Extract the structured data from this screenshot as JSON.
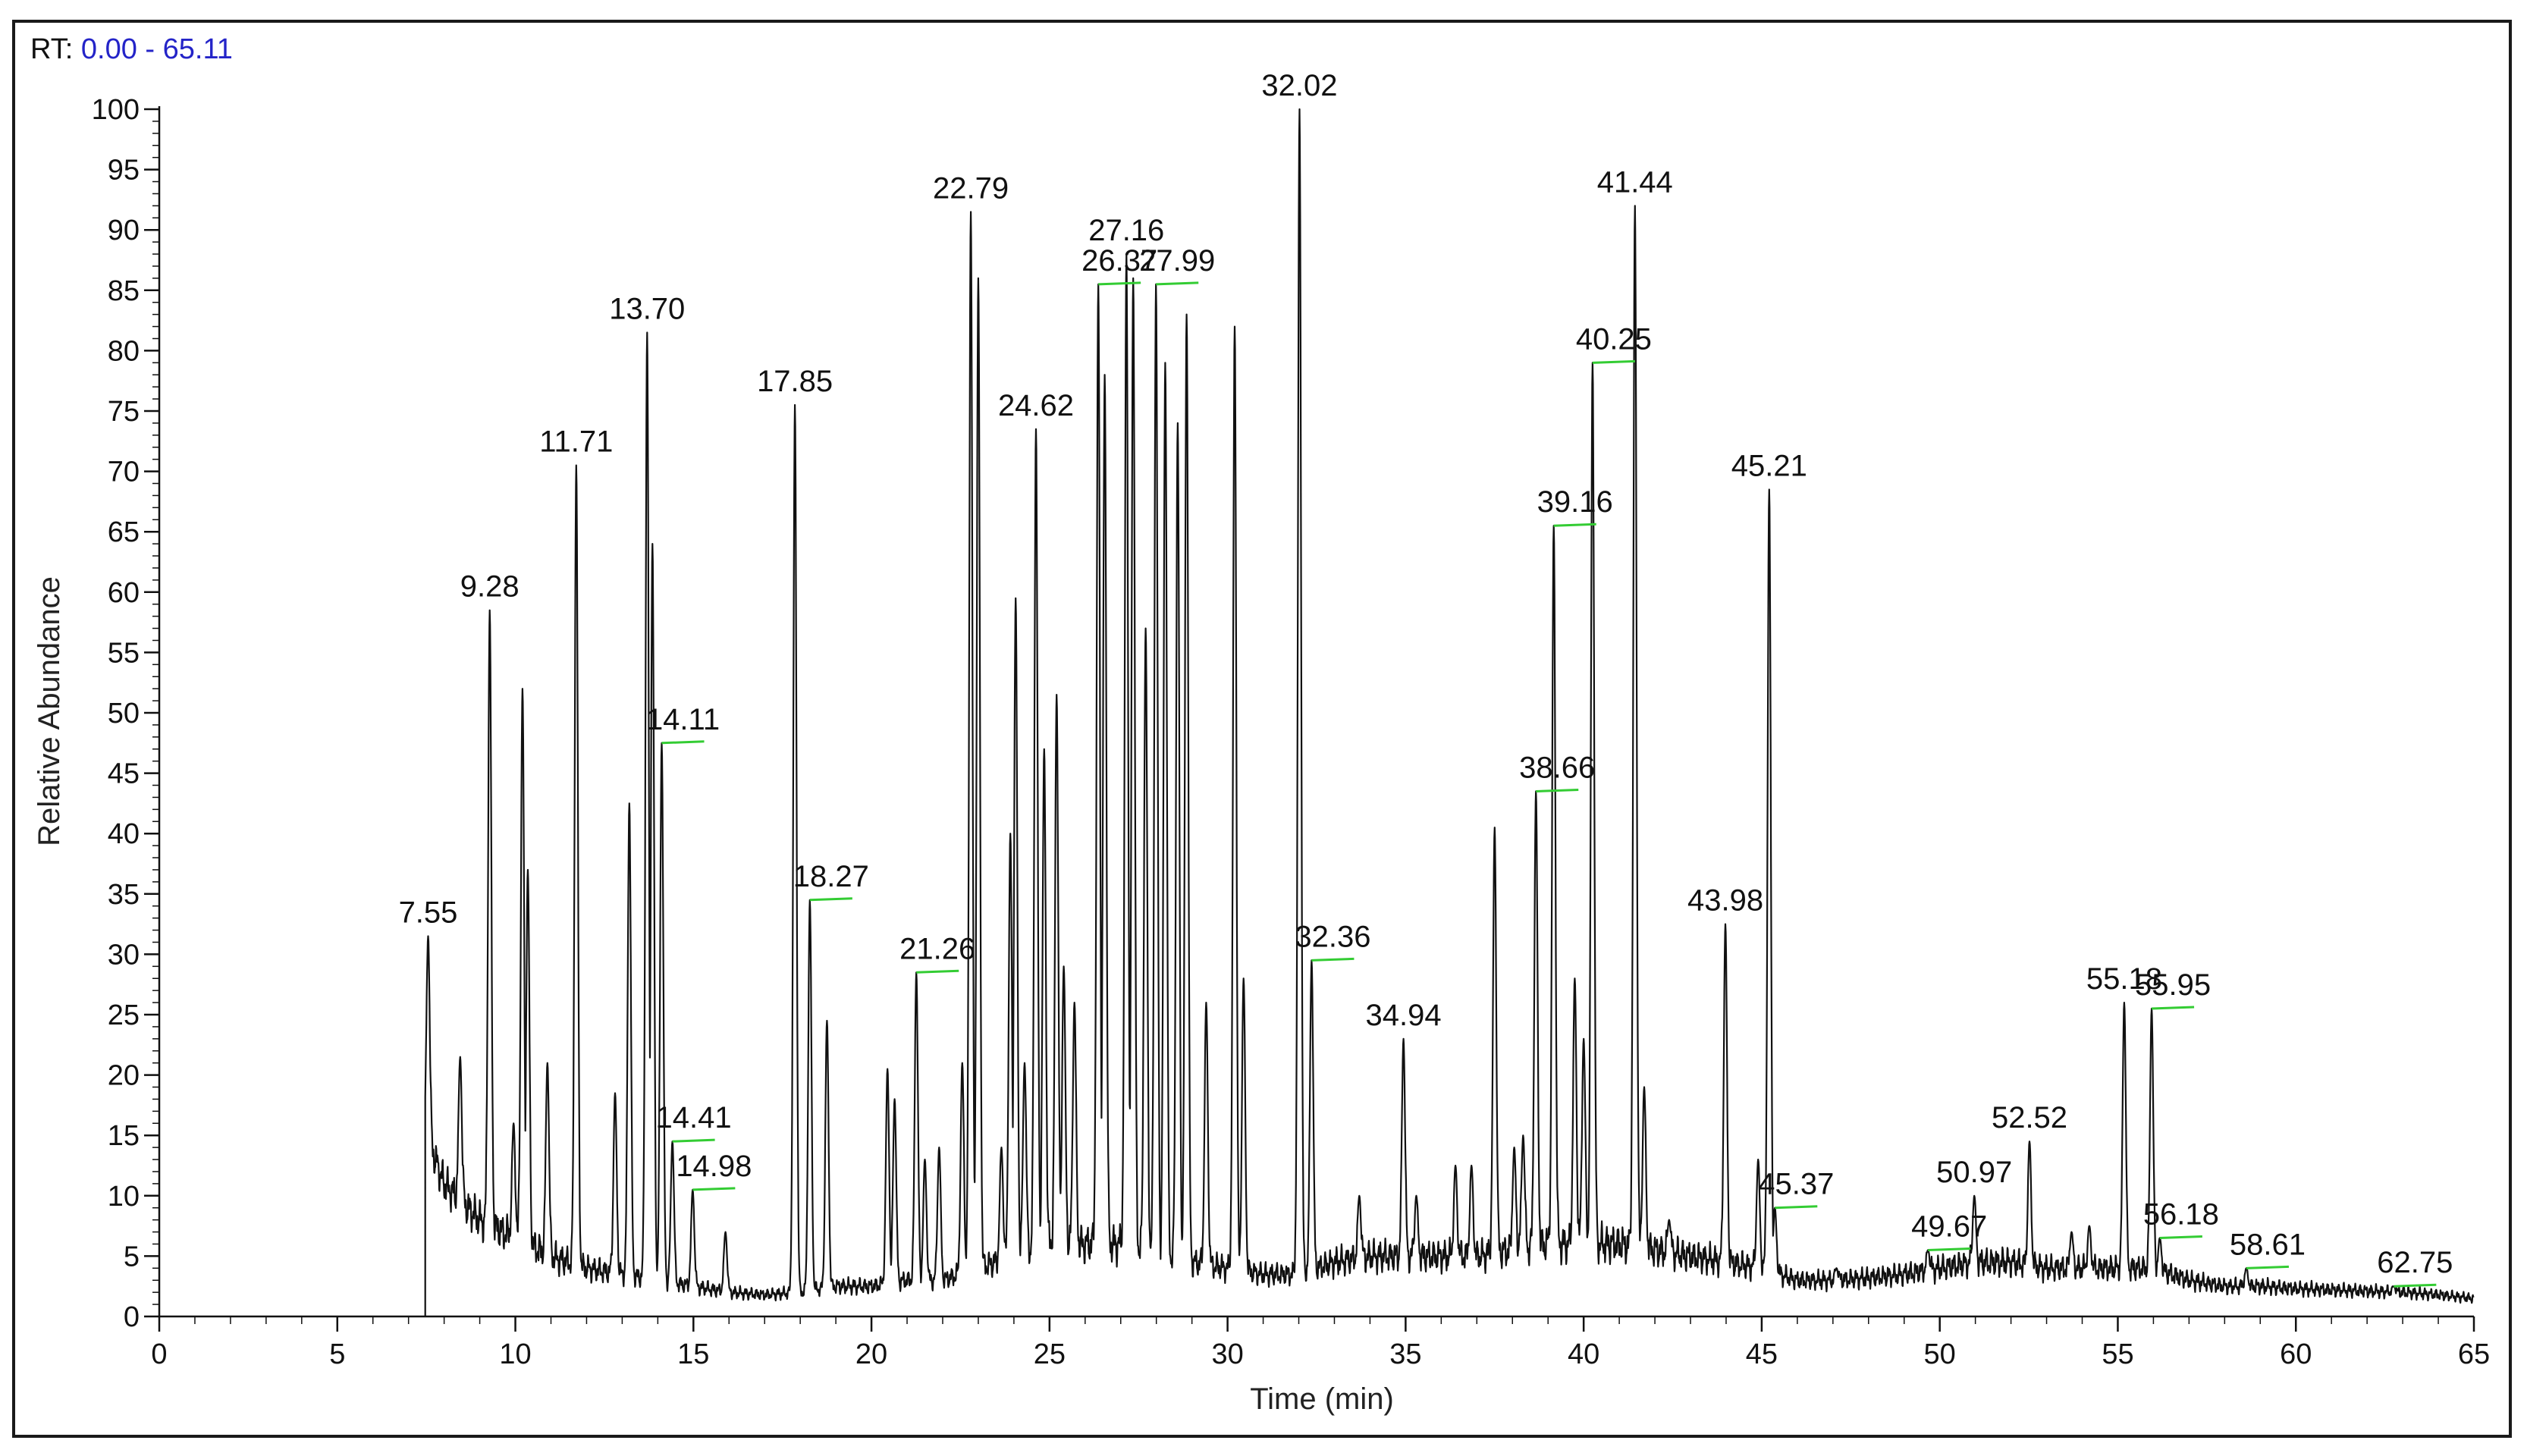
{
  "header": {
    "rt_prefix": "RT:",
    "rt_range": "0.00 - 65.11"
  },
  "chart_data": {
    "type": "line",
    "title": "",
    "xlabel": "Time (min)",
    "ylabel": "Relative Abundance",
    "xlim": [
      0,
      65
    ],
    "ylim": [
      0,
      100
    ],
    "x_ticks": [
      0,
      5,
      10,
      15,
      20,
      25,
      30,
      35,
      40,
      45,
      50,
      55,
      60,
      65
    ],
    "y_ticks": [
      0,
      5,
      10,
      15,
      20,
      25,
      30,
      35,
      40,
      45,
      50,
      55,
      60,
      65,
      70,
      75,
      80,
      85,
      90,
      95,
      100
    ],
    "grid": false,
    "line_color": "#111111",
    "marker_color": "#33cc33",
    "peaks": [
      {
        "rt": 7.55,
        "label": "7.55",
        "height": 31.5
      },
      {
        "rt": 8.45,
        "height": 21.5
      },
      {
        "rt": 9.28,
        "label": "9.28",
        "height": 58.5
      },
      {
        "rt": 9.95,
        "height": 16
      },
      {
        "rt": 10.2,
        "height": 52
      },
      {
        "rt": 10.35,
        "height": 37
      },
      {
        "rt": 10.9,
        "height": 21
      },
      {
        "rt": 11.71,
        "label": "11.71",
        "height": 70.5
      },
      {
        "rt": 12.8,
        "height": 18.5
      },
      {
        "rt": 13.2,
        "height": 42.5
      },
      {
        "rt": 13.7,
        "label": "13.70",
        "height": 81.5
      },
      {
        "rt": 13.85,
        "height": 64
      },
      {
        "rt": 14.11,
        "label": "14.11",
        "height": 47.5,
        "marker": true
      },
      {
        "rt": 14.41,
        "label": "14.41",
        "height": 14.5,
        "marker": true
      },
      {
        "rt": 14.98,
        "label": "14.98",
        "height": 10.5,
        "marker": true
      },
      {
        "rt": 15.9,
        "height": 7
      },
      {
        "rt": 17.85,
        "label": "17.85",
        "height": 75.5
      },
      {
        "rt": 18.27,
        "label": "18.27",
        "height": 34.5,
        "marker": true
      },
      {
        "rt": 18.75,
        "height": 24.5
      },
      {
        "rt": 20.45,
        "height": 20.5
      },
      {
        "rt": 20.65,
        "height": 18
      },
      {
        "rt": 21.26,
        "label": "21.26",
        "height": 28.5,
        "marker": true
      },
      {
        "rt": 21.5,
        "height": 13
      },
      {
        "rt": 21.9,
        "height": 14
      },
      {
        "rt": 22.55,
        "height": 21
      },
      {
        "rt": 22.79,
        "label": "22.79",
        "height": 91.5
      },
      {
        "rt": 23.0,
        "height": 86
      },
      {
        "rt": 23.65,
        "height": 14
      },
      {
        "rt": 23.9,
        "height": 40
      },
      {
        "rt": 24.05,
        "height": 59.5
      },
      {
        "rt": 24.3,
        "height": 21
      },
      {
        "rt": 24.62,
        "label": "24.62",
        "height": 73.5
      },
      {
        "rt": 24.85,
        "height": 47
      },
      {
        "rt": 25.2,
        "height": 51.5
      },
      {
        "rt": 25.4,
        "height": 29
      },
      {
        "rt": 25.7,
        "height": 26
      },
      {
        "rt": 26.37,
        "label": "26.37",
        "height": 85.5,
        "marker": true
      },
      {
        "rt": 26.55,
        "height": 78
      },
      {
        "rt": 27.16,
        "label": "27.16",
        "height": 88
      },
      {
        "rt": 27.35,
        "height": 86
      },
      {
        "rt": 27.7,
        "height": 57
      },
      {
        "rt": 27.99,
        "label": "27.99",
        "height": 85.5,
        "marker": true
      },
      {
        "rt": 28.25,
        "height": 79
      },
      {
        "rt": 28.6,
        "height": 74
      },
      {
        "rt": 28.85,
        "height": 83
      },
      {
        "rt": 29.4,
        "height": 26
      },
      {
        "rt": 30.2,
        "height": 82
      },
      {
        "rt": 30.45,
        "height": 28
      },
      {
        "rt": 32.02,
        "label": "32.02",
        "height": 100
      },
      {
        "rt": 32.36,
        "label": "32.36",
        "height": 29.5,
        "marker": true
      },
      {
        "rt": 33.7,
        "height": 10
      },
      {
        "rt": 34.94,
        "label": "34.94",
        "height": 23
      },
      {
        "rt": 35.3,
        "height": 10
      },
      {
        "rt": 36.4,
        "height": 12.5
      },
      {
        "rt": 36.85,
        "height": 12.5
      },
      {
        "rt": 37.5,
        "height": 40.5
      },
      {
        "rt": 38.05,
        "height": 14
      },
      {
        "rt": 38.3,
        "height": 15
      },
      {
        "rt": 38.66,
        "label": "38.66",
        "height": 43.5,
        "marker": true
      },
      {
        "rt": 39.16,
        "label": "39.16",
        "height": 65.5,
        "marker": true
      },
      {
        "rt": 39.75,
        "height": 28
      },
      {
        "rt": 40.0,
        "height": 23
      },
      {
        "rt": 40.25,
        "label": "40.25",
        "height": 79,
        "marker": true
      },
      {
        "rt": 41.44,
        "label": "41.44",
        "height": 92
      },
      {
        "rt": 41.7,
        "height": 19
      },
      {
        "rt": 42.4,
        "height": 8
      },
      {
        "rt": 43.98,
        "label": "43.98",
        "height": 32.5
      },
      {
        "rt": 44.9,
        "height": 13
      },
      {
        "rt": 45.21,
        "label": "45.21",
        "height": 68.5
      },
      {
        "rt": 45.37,
        "label": "45.37",
        "height": 9,
        "marker": true
      },
      {
        "rt": 47.1,
        "height": 4
      },
      {
        "rt": 49.67,
        "label": "49.67",
        "height": 5.5,
        "marker": true
      },
      {
        "rt": 50.97,
        "label": "50.97",
        "height": 10
      },
      {
        "rt": 52.52,
        "label": "52.52",
        "height": 14.5
      },
      {
        "rt": 53.7,
        "height": 7
      },
      {
        "rt": 54.2,
        "height": 7.5
      },
      {
        "rt": 55.18,
        "label": "55.18",
        "height": 26
      },
      {
        "rt": 55.95,
        "label": "55.95",
        "height": 25.5,
        "marker": true
      },
      {
        "rt": 56.18,
        "label": "56.18",
        "height": 6.5,
        "marker": true
      },
      {
        "rt": 58.61,
        "label": "58.61",
        "height": 4,
        "marker": true
      },
      {
        "rt": 62.75,
        "label": "62.75",
        "height": 2.5,
        "marker": true
      }
    ],
    "baseline": [
      [
        7.5,
        15
      ],
      [
        8.0,
        11
      ],
      [
        9.0,
        8
      ],
      [
        10.0,
        6.5
      ],
      [
        11.0,
        5
      ],
      [
        12.0,
        4
      ],
      [
        13.0,
        3.5
      ],
      [
        14.0,
        3
      ],
      [
        15.0,
        2.5
      ],
      [
        16.0,
        2
      ],
      [
        17.0,
        1.8
      ],
      [
        18.0,
        2
      ],
      [
        19.0,
        2.5
      ],
      [
        20.0,
        2.5
      ],
      [
        21.0,
        3
      ],
      [
        22.0,
        3
      ],
      [
        23.0,
        4
      ],
      [
        24.0,
        5
      ],
      [
        25.0,
        6
      ],
      [
        26.0,
        6
      ],
      [
        27.0,
        6
      ],
      [
        28.0,
        5
      ],
      [
        29.0,
        4.5
      ],
      [
        30.0,
        4
      ],
      [
        31.0,
        3.5
      ],
      [
        32.0,
        3.5
      ],
      [
        33.0,
        4.5
      ],
      [
        34.0,
        5
      ],
      [
        35.0,
        5
      ],
      [
        36.0,
        5
      ],
      [
        37.0,
        5
      ],
      [
        38.0,
        5.5
      ],
      [
        39.0,
        6
      ],
      [
        40.0,
        6
      ],
      [
        41.0,
        6
      ],
      [
        42.0,
        5.5
      ],
      [
        43.0,
        5
      ],
      [
        44.0,
        4.5
      ],
      [
        45.0,
        4
      ],
      [
        46.0,
        3
      ],
      [
        47.0,
        3
      ],
      [
        48.0,
        3.2
      ],
      [
        49.0,
        3.5
      ],
      [
        50.0,
        4
      ],
      [
        51.0,
        4.5
      ],
      [
        52.0,
        4.5
      ],
      [
        53.0,
        4
      ],
      [
        54.0,
        4
      ],
      [
        55.0,
        4
      ],
      [
        56.0,
        4
      ],
      [
        57.0,
        3
      ],
      [
        58.0,
        2.5
      ],
      [
        59.0,
        2.5
      ],
      [
        60.0,
        2.3
      ],
      [
        61.0,
        2.2
      ],
      [
        62.0,
        2.1
      ],
      [
        63.0,
        2
      ],
      [
        64.0,
        1.8
      ],
      [
        65.0,
        1.5
      ]
    ]
  }
}
